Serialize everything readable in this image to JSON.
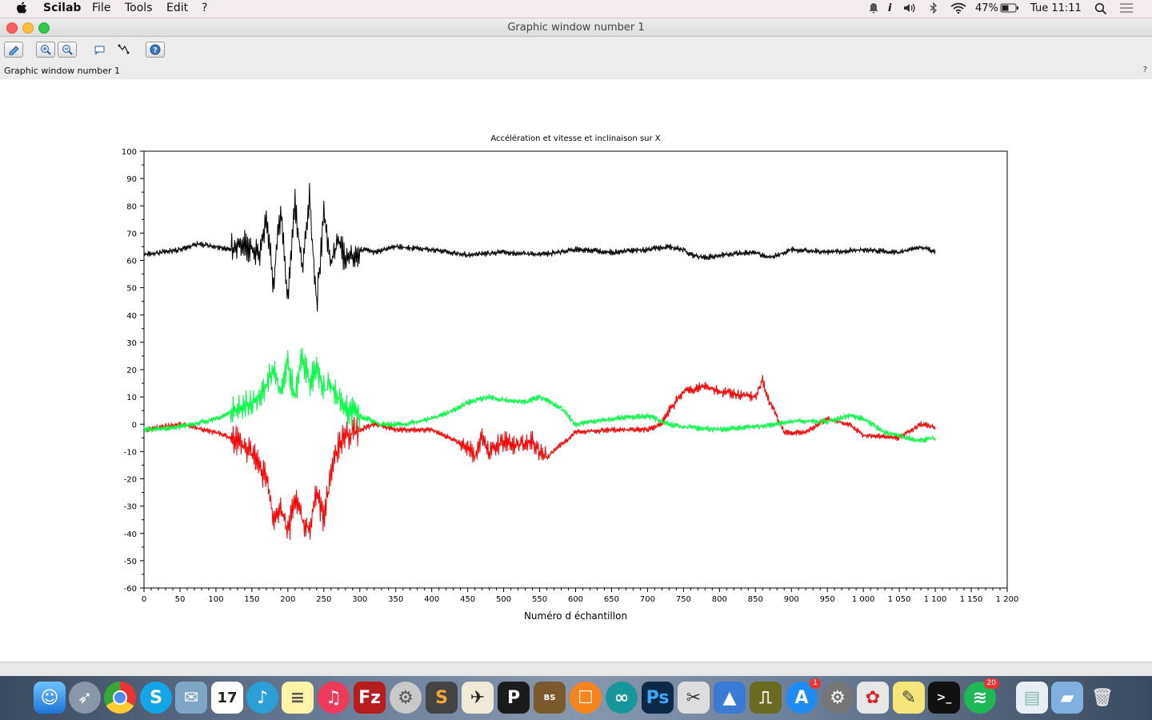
{
  "menubar": {
    "app_name": "Scilab",
    "menus": [
      "File",
      "Tools",
      "Edit",
      "?"
    ],
    "battery": "47%",
    "clock": "Tue 11:11"
  },
  "window": {
    "title": "Graphic window number 1",
    "label": "Graphic window number 1",
    "help": "?"
  },
  "toolbar": {
    "icons": [
      "rotate-icon",
      "zoom-in-icon",
      "zoom-out-icon",
      "datatip-icon",
      "editor-icon",
      "help-icon"
    ]
  },
  "chart_data": {
    "type": "line",
    "title": "Accélération et vitesse et inclinaison sur X",
    "xlabel": "Numéro d échantillon",
    "ylabel": "",
    "xlim": [
      0,
      1200
    ],
    "ylim": [
      -60,
      100
    ],
    "grid": false,
    "x_ticks": [
      0,
      50,
      100,
      150,
      200,
      250,
      300,
      350,
      400,
      450,
      500,
      550,
      600,
      650,
      700,
      750,
      800,
      850,
      900,
      950,
      1000,
      1050,
      1100,
      1150,
      1200
    ],
    "x_tick_labels": [
      "0",
      "50",
      "100",
      "150",
      "200",
      "250",
      "300",
      "350",
      "400",
      "450",
      "500",
      "550",
      "600",
      "650",
      "700",
      "750",
      "800",
      "850",
      "900",
      "950",
      "1 000",
      "1 050",
      "1 100",
      "1 150",
      "1 200"
    ],
    "y_ticks": [
      -60,
      -50,
      -40,
      -30,
      -20,
      -10,
      0,
      10,
      20,
      30,
      40,
      50,
      60,
      70,
      80,
      90,
      100
    ],
    "y_tick_labels": [
      "-60",
      "-50",
      "-40",
      "-30",
      "-20",
      "-10",
      "0",
      "10",
      "20",
      "30",
      "40",
      "50",
      "60",
      "70",
      "80",
      "90",
      "100"
    ],
    "series": [
      {
        "color": "#000000",
        "x": [
          0,
          25,
          50,
          75,
          100,
          120,
          140,
          160,
          170,
          180,
          190,
          200,
          210,
          220,
          230,
          240,
          250,
          260,
          270,
          280,
          300,
          320,
          350,
          400,
          450,
          500,
          550,
          600,
          650,
          700,
          730,
          750,
          760,
          780,
          800,
          850,
          870,
          900,
          950,
          1000,
          1050,
          1080,
          1100
        ],
        "y": [
          62,
          63,
          64,
          66,
          65,
          64,
          66,
          62,
          74,
          52,
          78,
          45,
          82,
          55,
          83,
          44,
          76,
          58,
          68,
          60,
          64,
          63,
          65,
          64,
          62,
          63,
          62,
          64,
          63,
          64,
          65,
          64,
          62,
          61,
          62,
          63,
          61,
          64,
          63,
          64,
          63,
          65,
          63
        ]
      },
      {
        "color": "#ff0000",
        "x": [
          0,
          50,
          100,
          120,
          140,
          160,
          170,
          180,
          190,
          200,
          210,
          220,
          230,
          240,
          250,
          260,
          270,
          280,
          300,
          320,
          350,
          400,
          450,
          460,
          470,
          480,
          490,
          500,
          520,
          540,
          550,
          560,
          600,
          650,
          700,
          720,
          730,
          750,
          780,
          800,
          850,
          860,
          870,
          890,
          920,
          950,
          980,
          1000,
          1050,
          1080,
          1100
        ],
        "y": [
          -2,
          0,
          -3,
          -5,
          -8,
          -15,
          -20,
          -35,
          -30,
          -40,
          -28,
          -35,
          -38,
          -25,
          -35,
          -18,
          -8,
          -5,
          -2,
          0,
          -2,
          -2,
          -8,
          -12,
          -5,
          -10,
          -8,
          -6,
          -8,
          -6,
          -10,
          -12,
          -3,
          -2,
          -2,
          0,
          5,
          12,
          14,
          12,
          10,
          16,
          8,
          -3,
          -3,
          2,
          0,
          -4,
          -5,
          0,
          -1
        ]
      },
      {
        "color": "#00ff40",
        "x": [
          0,
          50,
          100,
          150,
          170,
          180,
          190,
          200,
          210,
          220,
          230,
          240,
          250,
          260,
          270,
          280,
          300,
          330,
          360,
          400,
          430,
          450,
          480,
          500,
          530,
          550,
          580,
          600,
          650,
          700,
          730,
          750,
          800,
          850,
          900,
          950,
          980,
          1000,
          1030,
          1060,
          1080,
          1100
        ],
        "y": [
          -2,
          -1,
          2,
          8,
          14,
          20,
          12,
          22,
          10,
          25,
          15,
          20,
          12,
          14,
          10,
          6,
          3,
          0,
          0,
          2,
          5,
          8,
          10,
          9,
          8,
          10,
          6,
          0,
          2,
          3,
          0,
          -1,
          -2,
          -1,
          1,
          1,
          3,
          2,
          -3,
          -5,
          -6,
          -5
        ]
      }
    ]
  }
}
